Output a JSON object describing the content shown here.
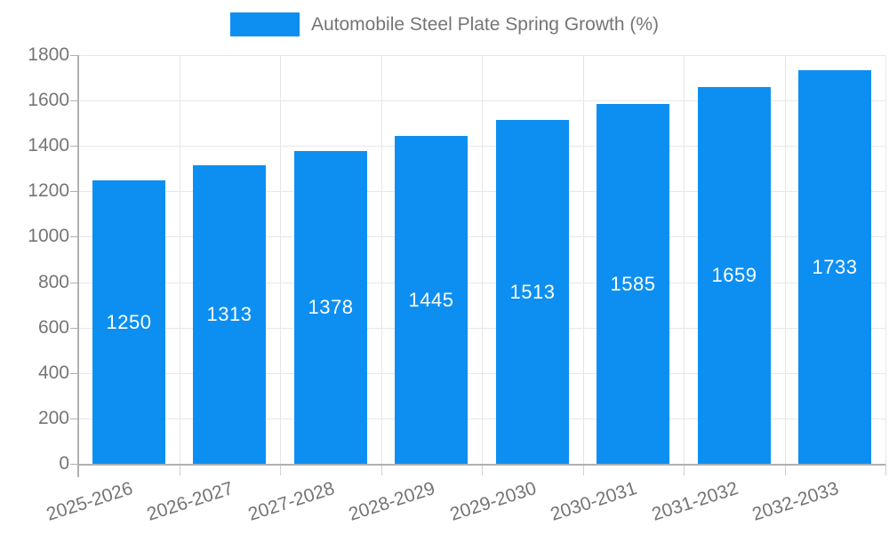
{
  "legend": {
    "series_label": "Automobile Steel Plate Spring Growth (%)"
  },
  "chart_data": {
    "type": "bar",
    "title": "Automobile Steel Plate Spring Growth (%)",
    "categories": [
      "2025-2026",
      "2026-2027",
      "2027-2028",
      "2028-2029",
      "2029-2030",
      "2030-2031",
      "2031-2032",
      "2032-2033"
    ],
    "values": [
      1250,
      1313,
      1378,
      1445,
      1513,
      1585,
      1659,
      1733
    ],
    "xlabel": "",
    "ylabel": "",
    "ylim": [
      0,
      1800
    ],
    "ytick_step": 200,
    "ytick_labels": [
      "0",
      "200",
      "400",
      "600",
      "800",
      "1000",
      "1200",
      "1400",
      "1600",
      "1800"
    ],
    "grid": true,
    "legend_position": "top-center",
    "bar_color": "#0d8ff2",
    "value_label_color": "#ffffff",
    "axis_text_color": "#757575",
    "gridline_color": "#e7e7e7",
    "boundary_tick_color": "#cfcfcf",
    "axis_line_color": "#b0b0b0",
    "x_label_rotation_deg": -18
  }
}
